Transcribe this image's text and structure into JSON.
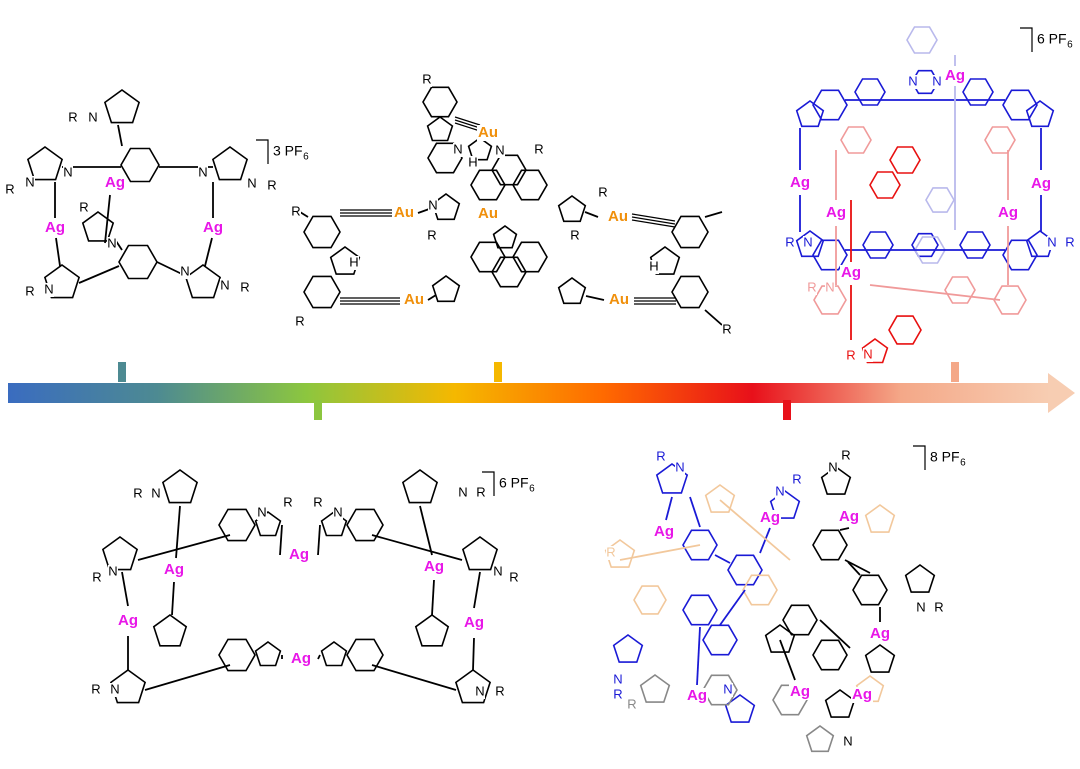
{
  "structures": [
    {
      "color": "#000000",
      "metal_color": "#e817e8",
      "counterion": {
        "label": "3 PF",
        "subscript": "6"
      },
      "metals": [
        "Ag",
        "Ag",
        "Ag"
      ],
      "atoms": [
        "R",
        "N",
        "R",
        "N",
        "N",
        "N",
        "R",
        "N",
        "R",
        "N",
        "R",
        "N",
        "N",
        "R",
        "N"
      ]
    },
    {
      "color": "#000000",
      "metal_color": "#f0900c",
      "metals": [
        "Au",
        "Au",
        "Au",
        "Au",
        "Au",
        "Au"
      ],
      "atoms": [
        "R",
        "N",
        "H",
        "N",
        "R",
        "R",
        "N",
        "R",
        "R",
        "H",
        "H",
        "R",
        "R",
        "R"
      ]
    },
    {
      "color": "#1a1ad6",
      "metal_color": "#e817e8",
      "counterion": {
        "label": "6 PF",
        "subscript": "6"
      },
      "metals": [
        "Ag",
        "Ag",
        "Ag",
        "Ag",
        "Ag",
        "Ag"
      ],
      "atoms": [
        {
          "text": "R",
          "color": "#1a1ad6"
        },
        {
          "text": "N",
          "color": "#1a1ad6"
        },
        {
          "text": "N",
          "color": "#1a1ad6"
        },
        {
          "text": "R",
          "color": "#1a1ad6"
        },
        {
          "text": "R",
          "color": "#f09a9a"
        },
        {
          "text": "N",
          "color": "#f09a9a"
        },
        {
          "text": "R",
          "color": "#e81010"
        },
        {
          "text": "N",
          "color": "#e81010"
        },
        {
          "text": "N",
          "color": "#1a1ad6"
        },
        {
          "text": "N",
          "color": "#1a1ad6"
        }
      ]
    },
    {
      "color": "#000000",
      "metal_color": "#e817e8",
      "counterion": {
        "label": "6 PF",
        "subscript": "6"
      },
      "metals": [
        "Ag",
        "Ag",
        "Ag",
        "Ag",
        "Ag",
        "Ag"
      ],
      "atoms": [
        "R",
        "N",
        "N",
        "R",
        "R",
        "N",
        "N",
        "R",
        "R",
        "N",
        "N",
        "R",
        "N",
        "R",
        "R",
        "N"
      ]
    },
    {
      "color": "#000000",
      "metal_color": "#e817e8",
      "counterion": {
        "label": "8 PF",
        "subscript": "6"
      },
      "metals": [
        "Ag",
        "Ag",
        "Ag",
        "Ag",
        "Ag",
        "Ag",
        "Ag"
      ],
      "atoms": [
        {
          "text": "N",
          "color": "#1a1ad6"
        },
        {
          "text": "R",
          "color": "#1a1ad6"
        },
        {
          "text": "R",
          "color": "#1a1ad6"
        },
        {
          "text": "N",
          "color": "#1a1ad6"
        },
        {
          "text": "R",
          "color": "#000000"
        },
        {
          "text": "N",
          "color": "#000000"
        },
        {
          "text": "R",
          "color": "#000000"
        },
        {
          "text": "N",
          "color": "#000000"
        },
        {
          "text": "N",
          "color": "#1a1ad6"
        },
        {
          "text": "R",
          "color": "#1a1ad6"
        },
        {
          "text": "N",
          "color": "#1a1ad6"
        },
        {
          "text": "R",
          "color": "#888888"
        },
        {
          "text": "R",
          "color": "#f2c89c"
        },
        {
          "text": "N",
          "color": "#000000"
        }
      ]
    }
  ],
  "arrow": {
    "stops": [
      "#3a6cc0",
      "#4d8a92",
      "#8cc63f",
      "#f5b800",
      "#ff6a00",
      "#e8101a",
      "#f4a888",
      "#f7cdb2"
    ]
  }
}
